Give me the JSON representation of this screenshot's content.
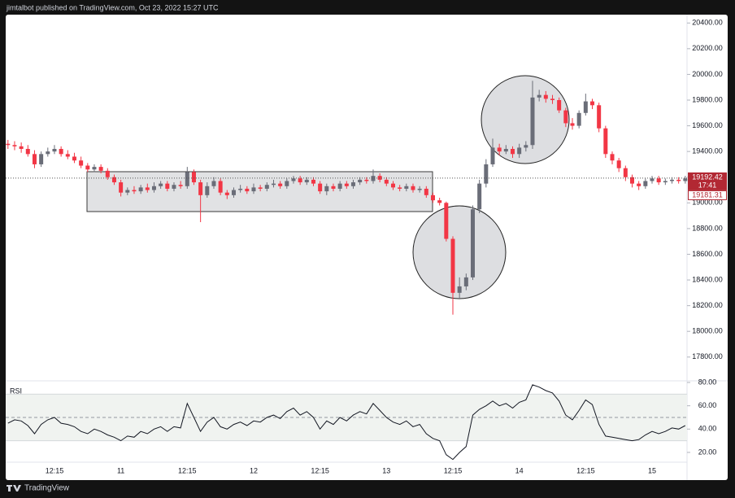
{
  "header_text": "jimtalbot published on TradingView.com, Oct 23, 2022 15:27 UTC",
  "footer_text": "TradingView",
  "chart_data": {
    "type": "candlestick",
    "categories": [
      null,
      null,
      null,
      null,
      null,
      null,
      null,
      "12:15",
      null,
      null,
      null,
      null,
      null,
      null,
      null,
      null,
      null,
      "11",
      null,
      null,
      null,
      null,
      null,
      null,
      null,
      null,
      null,
      "12:15",
      null,
      null,
      null,
      null,
      null,
      null,
      null,
      null,
      null,
      "12",
      null,
      null,
      null,
      null,
      null,
      null,
      null,
      null,
      null,
      "12:15",
      null,
      null,
      null,
      null,
      null,
      null,
      null,
      null,
      null,
      "13",
      null,
      null,
      null,
      null,
      null,
      null,
      null,
      null,
      null,
      "12:15",
      null,
      null,
      null,
      null,
      null,
      null,
      null,
      null,
      null,
      "14",
      null,
      null,
      null,
      null,
      null,
      null,
      null,
      null,
      null,
      "12:15",
      null,
      null,
      null,
      null,
      null,
      null,
      null,
      null,
      null,
      "15",
      null,
      null,
      null,
      null,
      null
    ],
    "open": [
      19460,
      19450,
      19440,
      19420,
      19380,
      19300,
      19380,
      19400,
      19420,
      19380,
      19360,
      19330,
      19290,
      19260,
      19280,
      19250,
      19200,
      19160,
      19080,
      19100,
      19090,
      19120,
      19100,
      19130,
      19150,
      19110,
      19140,
      19130,
      19240,
      19160,
      19060,
      19130,
      19170,
      19080,
      19060,
      19100,
      19110,
      19090,
      19120,
      19110,
      19140,
      19150,
      19130,
      19170,
      19190,
      19160,
      19180,
      19150,
      19090,
      19130,
      19110,
      19150,
      19130,
      19160,
      19180,
      19170,
      19210,
      19180,
      19150,
      19120,
      19110,
      19130,
      19100,
      19110,
      19060,
      19020,
      19000,
      18720,
      18300,
      18350,
      18420,
      18950,
      19150,
      19300,
      19430,
      19400,
      19420,
      19380,
      19430,
      19450,
      19820,
      19840,
      19810,
      19800,
      19720,
      19620,
      19600,
      19700,
      19790,
      19760,
      19580,
      19380,
      19330,
      19270,
      19200,
      19150,
      19130,
      19170,
      19190,
      19160,
      19170,
      19180,
      19170
    ],
    "high": [
      19490,
      19480,
      19470,
      19450,
      19410,
      19400,
      19430,
      19450,
      19440,
      19410,
      19390,
      19360,
      19310,
      19300,
      19300,
      19270,
      19220,
      19180,
      19120,
      19130,
      19140,
      19150,
      19160,
      19170,
      19170,
      19160,
      19170,
      19280,
      19260,
      19180,
      19160,
      19200,
      19190,
      19100,
      19120,
      19140,
      19130,
      19150,
      19140,
      19160,
      19180,
      19170,
      19190,
      19210,
      19210,
      19200,
      19200,
      19170,
      19150,
      19150,
      19170,
      19170,
      19180,
      19200,
      19200,
      19260,
      19230,
      19200,
      19170,
      19140,
      19150,
      19150,
      19130,
      19130,
      19080,
      19040,
      19010,
      18740,
      18420,
      18450,
      18980,
      19180,
      19340,
      19500,
      19460,
      19450,
      19440,
      19460,
      19480,
      19950,
      19880,
      19870,
      19840,
      19820,
      19740,
      19660,
      19720,
      19850,
      19810,
      19780,
      19600,
      19400,
      19350,
      19290,
      19220,
      19170,
      19190,
      19210,
      19210,
      19190,
      19200,
      19200,
      19210
    ],
    "low": [
      19420,
      19410,
      19390,
      19360,
      19270,
      19280,
      19360,
      19380,
      19360,
      19340,
      19310,
      19270,
      19240,
      19240,
      19230,
      19180,
      19140,
      19050,
      19060,
      19070,
      19070,
      19080,
      19080,
      19110,
      19090,
      19090,
      19110,
      19110,
      19140,
      18850,
      19040,
      19110,
      19060,
      19030,
      19040,
      19080,
      19070,
      19070,
      19090,
      19090,
      19120,
      19110,
      19110,
      19150,
      19140,
      19140,
      19130,
      19070,
      19060,
      19090,
      19090,
      19110,
      19110,
      19140,
      19150,
      19150,
      19160,
      19130,
      19100,
      19090,
      19090,
      19080,
      19080,
      19040,
      19000,
      18980,
      18700,
      18130,
      18260,
      18320,
      18400,
      18920,
      19120,
      19280,
      19370,
      19380,
      19350,
      19350,
      19400,
      19420,
      19790,
      19780,
      19770,
      19700,
      19590,
      19570,
      19580,
      19680,
      19730,
      19550,
      19350,
      19300,
      19240,
      19170,
      19120,
      19100,
      19110,
      19150,
      19140,
      19140,
      19150,
      19150,
      19150
    ],
    "close": [
      19450,
      19440,
      19420,
      19380,
      19300,
      19380,
      19400,
      19420,
      19380,
      19360,
      19330,
      19290,
      19260,
      19280,
      19250,
      19200,
      19160,
      19080,
      19100,
      19090,
      19120,
      19100,
      19130,
      19150,
      19110,
      19140,
      19130,
      19240,
      19160,
      19060,
      19130,
      19170,
      19080,
      19060,
      19100,
      19110,
      19090,
      19120,
      19110,
      19140,
      19150,
      19130,
      19170,
      19190,
      19160,
      19180,
      19150,
      19090,
      19130,
      19110,
      19150,
      19130,
      19160,
      19180,
      19170,
      19210,
      19180,
      19150,
      19120,
      19110,
      19130,
      19100,
      19110,
      19060,
      19020,
      19000,
      18720,
      18300,
      18350,
      18420,
      18950,
      19150,
      19300,
      19430,
      19400,
      19420,
      19380,
      19430,
      19450,
      19820,
      19840,
      19810,
      19800,
      19720,
      19620,
      19600,
      19700,
      19790,
      19760,
      19580,
      19380,
      19330,
      19270,
      19200,
      19150,
      19130,
      19170,
      19190,
      19160,
      19170,
      19180,
      19170,
      19190
    ],
    "up_color": "#6a6d78",
    "down_color": "#f23645",
    "ylim": [
      17615,
      20465
    ],
    "yticks": [
      {
        "value": 17800,
        "label": "17800.00"
      },
      {
        "value": 18000,
        "label": "18000.00"
      },
      {
        "value": 18200,
        "label": "18200.00"
      },
      {
        "value": 18400,
        "label": "18400.00"
      },
      {
        "value": 18600,
        "label": "18600.00"
      },
      {
        "value": 18800,
        "label": "18800.00"
      },
      {
        "value": 19000,
        "label": "19000.00"
      },
      {
        "value": 19200,
        "label": "19200.00"
      },
      {
        "value": 19400,
        "label": "19400.00"
      },
      {
        "value": 19600,
        "label": "19600.00"
      },
      {
        "value": 19800,
        "label": "19800.00"
      },
      {
        "value": 20000,
        "label": "20000.00"
      },
      {
        "value": 20200,
        "label": "20200.00"
      },
      {
        "value": 20400,
        "label": "20400.00"
      }
    ],
    "last_price": 19192.42,
    "countdown": "17:41",
    "second_price": 19181.31,
    "indicator": {
      "name": "RSI",
      "color": "#131722",
      "band": [
        30,
        70
      ],
      "midline": 50,
      "values": [
        45,
        48,
        47,
        43,
        36,
        44,
        48,
        50,
        45,
        44,
        42,
        38,
        36,
        40,
        38,
        35,
        33,
        30,
        34,
        33,
        38,
        36,
        40,
        42,
        38,
        42,
        41,
        62,
        50,
        38,
        46,
        50,
        42,
        40,
        44,
        46,
        43,
        47,
        46,
        50,
        52,
        49,
        55,
        58,
        52,
        55,
        50,
        40,
        47,
        44,
        50,
        47,
        52,
        55,
        53,
        62,
        56,
        50,
        46,
        44,
        47,
        42,
        44,
        36,
        32,
        30,
        18,
        14,
        20,
        25,
        52,
        57,
        60,
        64,
        60,
        62,
        58,
        63,
        65,
        78,
        76,
        73,
        71,
        64,
        52,
        48,
        56,
        65,
        61,
        44,
        34,
        33,
        32,
        31,
        30,
        31,
        35,
        38,
        36,
        38,
        41,
        40,
        43
      ],
      "ylim": [
        11.6,
        81.4
      ],
      "yticks": [
        {
          "value": 20,
          "label": "20.00"
        },
        {
          "value": 40,
          "label": "40.00"
        },
        {
          "value": 60,
          "label": "60.00"
        },
        {
          "value": 80,
          "label": "80.00"
        }
      ]
    }
  }
}
